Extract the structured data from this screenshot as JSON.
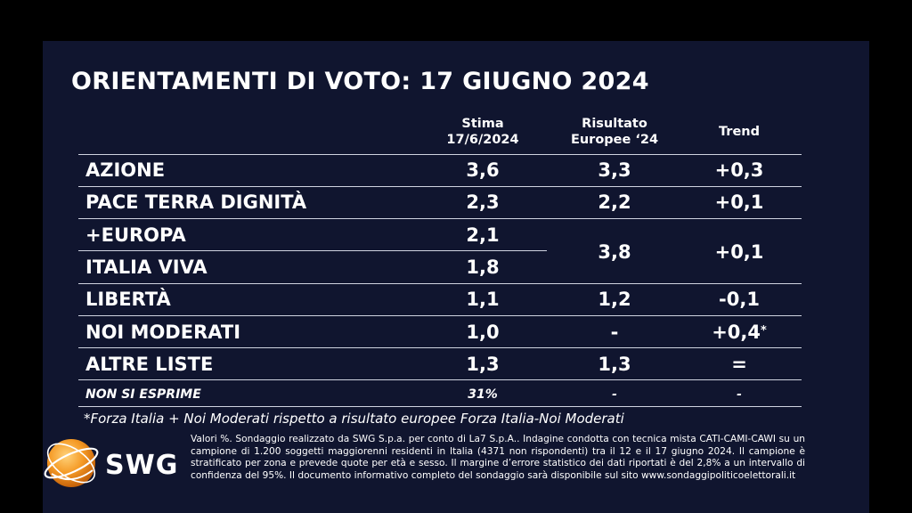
{
  "title": "ORIENTAMENTI DI VOTO: 17 GIUGNO 2024",
  "columns": {
    "stima_line1": "Stima",
    "stima_line2": "17/6/2024",
    "risultato_line1": "Risultato",
    "risultato_line2": "Europee ‘24",
    "trend": "Trend"
  },
  "chart_data": {
    "type": "table",
    "title": "ORIENTAMENTI DI VOTO: 17 GIUGNO 2024",
    "columns": [
      "Stima 17/6/2024",
      "Risultato Europee ‘24",
      "Trend"
    ],
    "rows": [
      {
        "party": "AZIONE",
        "stima": "3,6",
        "risultato": "3,3",
        "trend": "+0,3"
      },
      {
        "party": "PACE TERRA DIGNITÀ",
        "stima": "2,3",
        "risultato": "2,2",
        "trend": "+0,1"
      },
      {
        "party": "+EUROPA",
        "stima": "2,1"
      },
      {
        "party": "ITALIA VIVA",
        "stima": "1,8"
      },
      {
        "party": "LIBERTÀ",
        "stima": "1,1",
        "risultato": "1,2",
        "trend": "-0,1"
      },
      {
        "party": "NOI MODERATI",
        "stima": "1,0",
        "risultato": "-",
        "trend": "+0,4",
        "trend_mark": "*"
      },
      {
        "party": "ALTRE LISTE",
        "stima": "1,3",
        "risultato": "1,3",
        "trend": "="
      }
    ],
    "merged": {
      "parties": [
        "+EUROPA",
        "ITALIA VIVA"
      ],
      "risultato": "3,8",
      "trend": "+0,1"
    },
    "non_si_esprime": {
      "label": "NON SI ESPRIME",
      "stima": "31%",
      "risultato": "-",
      "trend": "-"
    }
  },
  "footnote": "*Forza Italia + Noi Moderati rispetto a risultato europee Forza Italia-Noi Moderati",
  "methodology": "Valori %. Sondaggio realizzato da SWG S.p.a. per conto di La7 S.p.A.. Indagine condotta con tecnica mista CATI-CAMI-CAWI su un campione di 1.200 soggetti maggiorenni residenti in Italia (4371 non rispondenti) tra il 12 e il 17 giugno 2024. Il campione è stratificato per zona e prevede quote per età e sesso. Il margine d’errore statistico dei dati riportati è del 2,8% a un intervallo di confidenza del 95%. Il documento informativo completo del sondaggio sarà disponibile sul sito www.sondaggipoliticoelettorali.it",
  "logo": {
    "text": "SWG",
    "icon": "globe-icon",
    "accent": "#f08a1c"
  },
  "colors": {
    "background": "#10152f",
    "text": "#ffffff",
    "lines": "#cfd3e0"
  }
}
